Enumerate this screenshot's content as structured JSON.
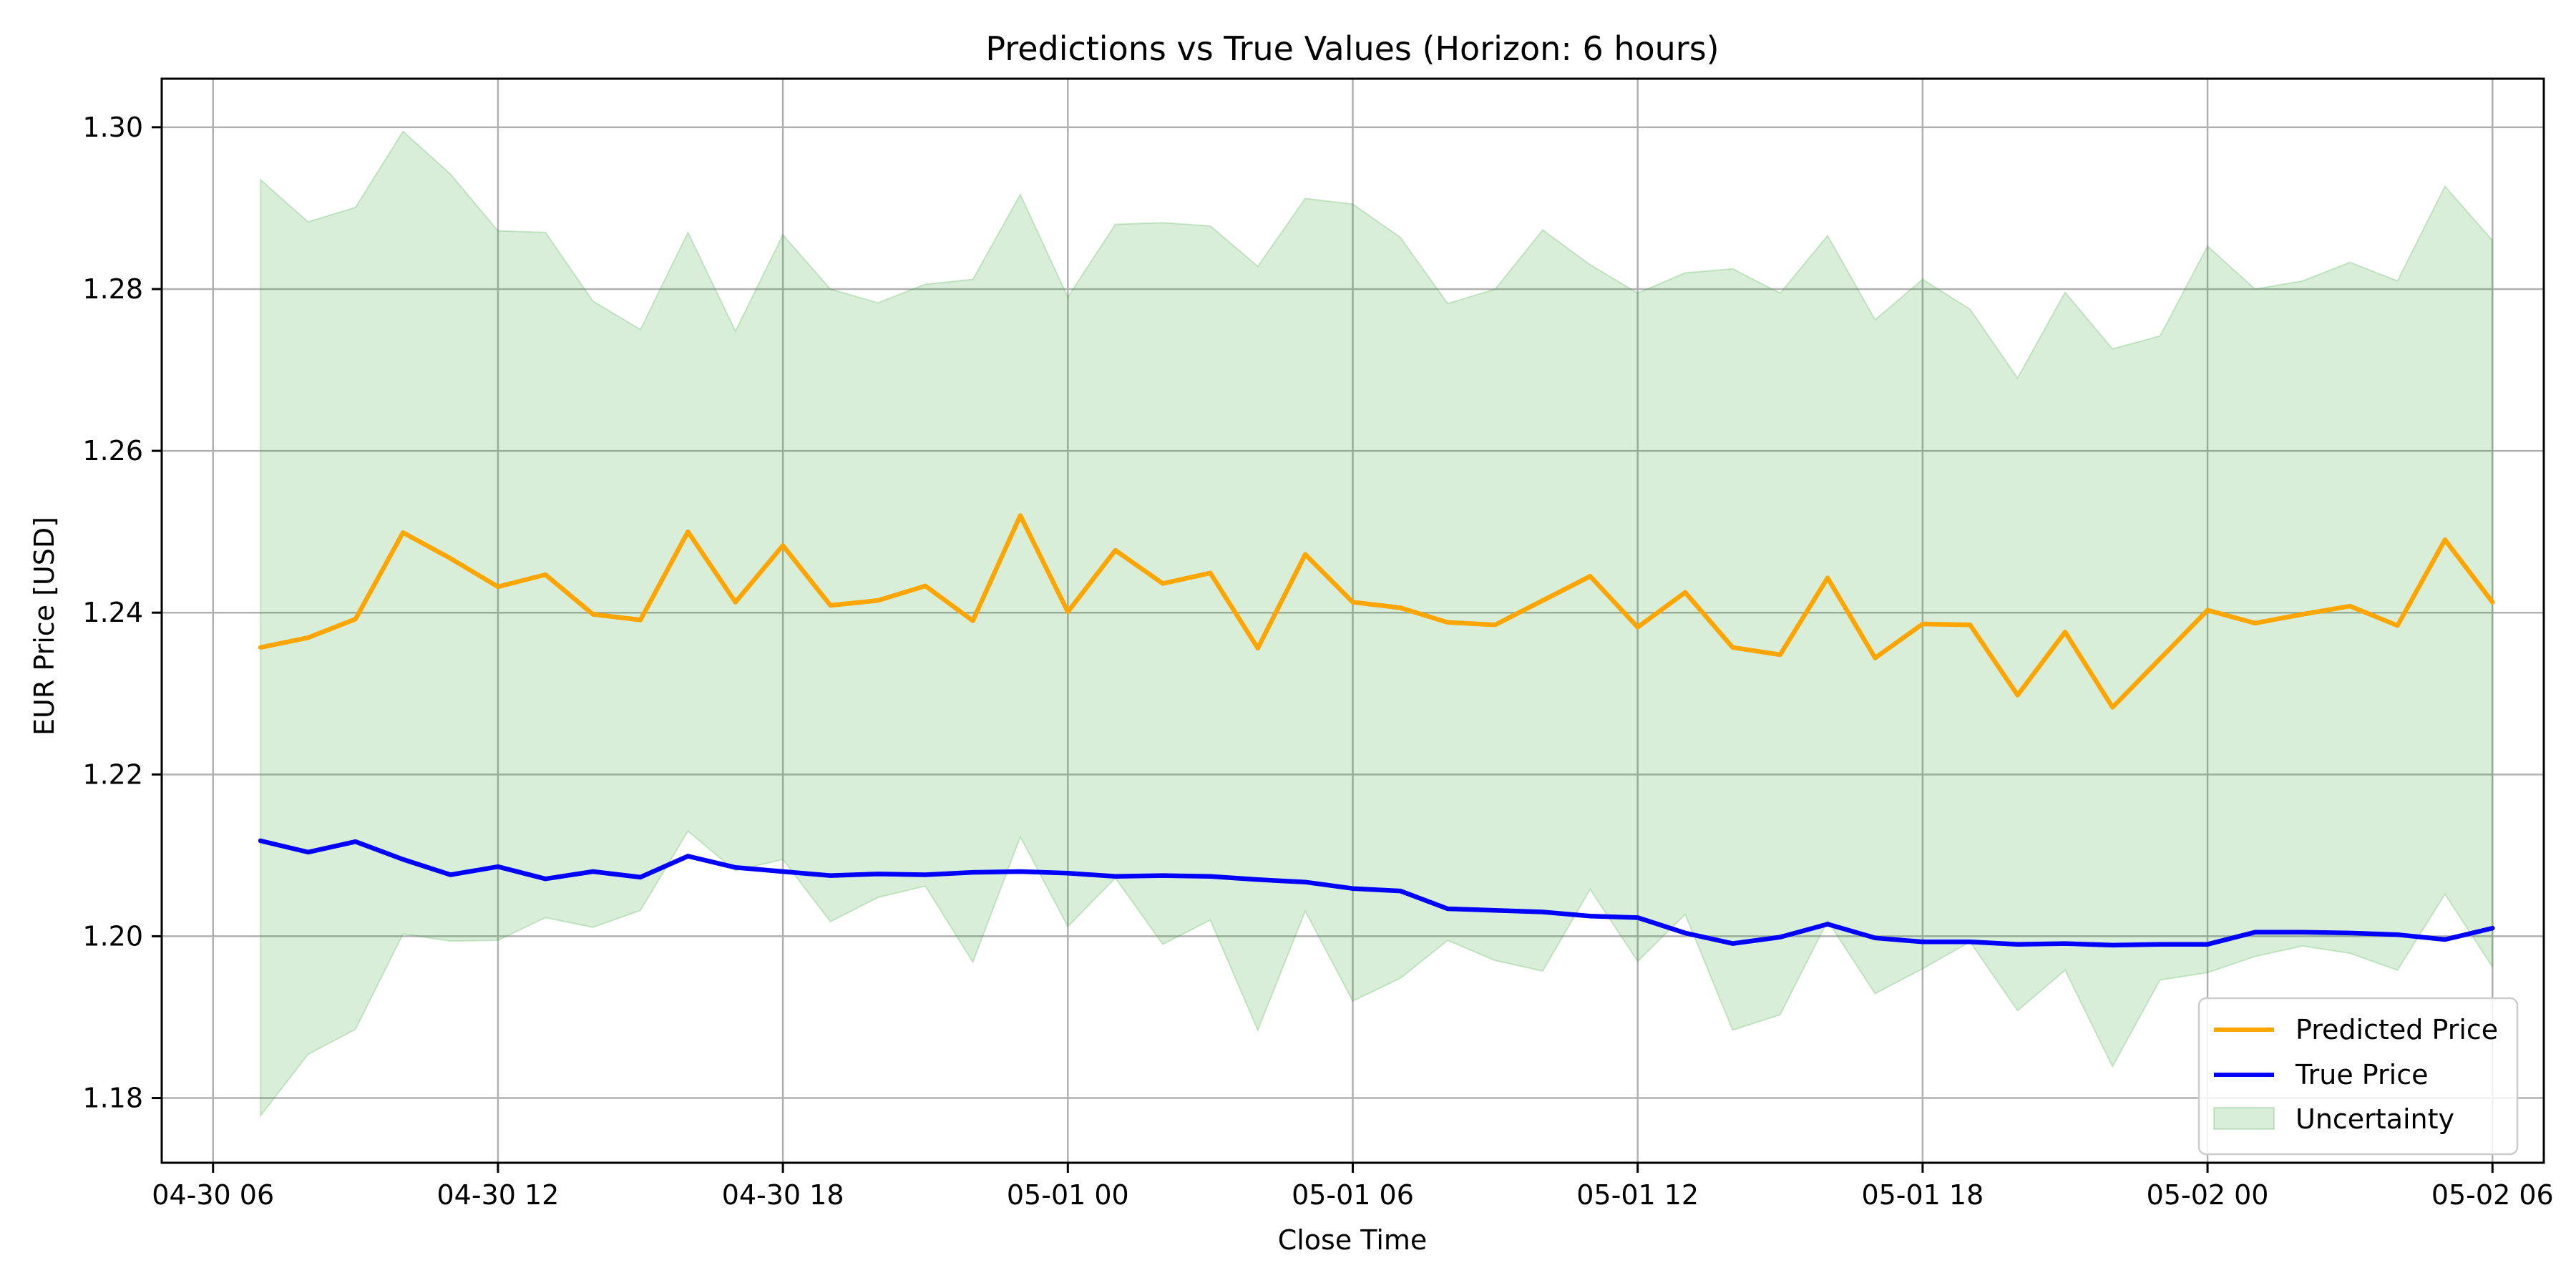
{
  "chart_data": {
    "type": "line",
    "title": "Predictions vs True Values (Horizon: 6 hours)",
    "xlabel": "Close Time",
    "ylabel": "EUR Price [USD]",
    "x_start": "04-30 07:00",
    "x_end": "05-02 06:00",
    "x_step_hours": 1,
    "xlim": [
      "04-30 06:00",
      "05-02 06:00"
    ],
    "ylim": [
      1.172,
      1.306
    ],
    "x_ticks": [
      "04-30 06",
      "04-30 12",
      "04-30 18",
      "05-01 00",
      "05-01 06",
      "05-01 12",
      "05-01 18",
      "05-02 00",
      "05-02 06"
    ],
    "y_ticks": [
      "1.18",
      "1.20",
      "1.22",
      "1.24",
      "1.26",
      "1.28",
      "1.30"
    ],
    "grid": true,
    "legend_position": "bottom-right",
    "series": [
      {
        "name": "Predicted Price",
        "color": "#FFA500",
        "values": [
          1.2357,
          1.2369,
          1.2392,
          1.2499,
          1.2467,
          1.2432,
          1.2447,
          1.2398,
          1.2391,
          1.25,
          1.2413,
          1.2483,
          1.2409,
          1.2415,
          1.2433,
          1.239,
          1.252,
          1.2401,
          1.2477,
          1.2436,
          1.2449,
          1.2356,
          1.2472,
          1.2413,
          1.2406,
          1.2388,
          1.2385,
          1.2415,
          1.2445,
          1.2382,
          1.2425,
          1.2357,
          1.2348,
          1.2443,
          1.2344,
          1.2386,
          1.2385,
          1.2298,
          1.2376,
          1.2283,
          1.2343,
          1.2403,
          1.2387,
          1.2398,
          1.2408,
          1.2384,
          1.249,
          1.2413
        ]
      },
      {
        "name": "True Price",
        "color": "#0000FF",
        "values": [
          1.2118,
          1.2104,
          1.2117,
          1.2095,
          1.2076,
          1.2086,
          1.2071,
          1.208,
          1.2073,
          1.2099,
          1.2085,
          1.208,
          1.2075,
          1.2077,
          1.2076,
          1.2079,
          1.208,
          1.2078,
          1.2074,
          1.2075,
          1.2074,
          1.207,
          1.2067,
          1.2059,
          1.2056,
          1.2034,
          1.2032,
          1.203,
          1.2025,
          1.2023,
          1.2004,
          1.1991,
          1.1999,
          1.2015,
          1.1998,
          1.1993,
          1.1993,
          1.199,
          1.1991,
          1.1989,
          1.199,
          1.199,
          1.2005,
          1.2005,
          1.2004,
          1.2002,
          1.1996,
          1.201
        ]
      }
    ],
    "band": {
      "name": "Uncertainty",
      "color": "#2ca02c",
      "upper": [
        1.2935,
        1.2883,
        1.2901,
        1.2995,
        1.2942,
        1.2872,
        1.287,
        1.2785,
        1.275,
        1.287,
        1.2748,
        1.2867,
        1.28,
        1.2783,
        1.2806,
        1.2812,
        1.2917,
        1.279,
        1.288,
        1.2882,
        1.2878,
        1.2828,
        1.2912,
        1.2905,
        1.2864,
        1.2782,
        1.28,
        1.2873,
        1.283,
        1.2795,
        1.282,
        1.2825,
        1.2795,
        1.2866,
        1.2762,
        1.2812,
        1.2775,
        1.269,
        1.2796,
        1.2726,
        1.2742,
        1.2853,
        1.28,
        1.281,
        1.2833,
        1.281,
        1.2927,
        1.286
      ],
      "lower": [
        1.1778,
        1.1854,
        1.1885,
        1.2003,
        1.1994,
        1.1995,
        1.2023,
        1.2011,
        1.2032,
        1.213,
        1.2081,
        1.2095,
        1.2018,
        1.2048,
        1.2062,
        1.1968,
        1.2123,
        1.2012,
        1.2072,
        1.199,
        1.202,
        1.1884,
        1.2031,
        1.192,
        1.1948,
        1.1995,
        1.197,
        1.1957,
        1.2058,
        1.1969,
        1.2027,
        1.1884,
        1.1903,
        1.2019,
        1.1929,
        1.196,
        1.1993,
        1.1908,
        1.1958,
        1.1839,
        1.1946,
        1.1955,
        1.1975,
        1.1988,
        1.1979,
        1.1958,
        1.2052,
        1.1962
      ]
    }
  }
}
